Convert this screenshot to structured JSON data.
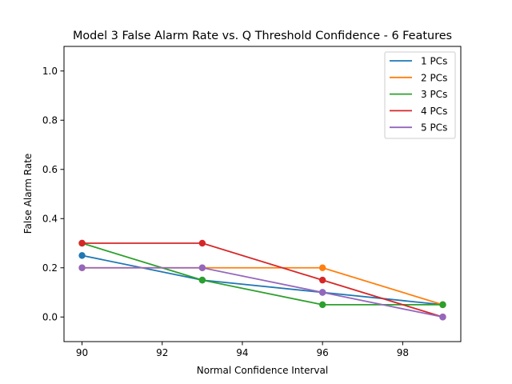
{
  "chart_data": {
    "type": "line",
    "title": "Model 3 False Alarm Rate vs. Q Threshold Confidence - 6 Features",
    "xlabel": "Normal Confidence Interval",
    "ylabel": "False Alarm Rate",
    "xlim": [
      89.55,
      99.45
    ],
    "ylim": [
      -0.1,
      1.1
    ],
    "x_ticks": [
      90,
      92,
      94,
      96,
      98
    ],
    "y_ticks": [
      0.0,
      0.2,
      0.4,
      0.6,
      0.8,
      1.0
    ],
    "x_tick_labels": [
      "90",
      "92",
      "94",
      "96",
      "98"
    ],
    "y_tick_labels": [
      "0.0",
      "0.2",
      "0.4",
      "0.6",
      "0.8",
      "1.0"
    ],
    "grid": false,
    "legend_position": "top-right",
    "x": [
      90,
      93,
      96,
      99
    ],
    "series": [
      {
        "name": "1 PCs",
        "color": "#1f77b4",
        "values": [
          0.25,
          0.15,
          0.1,
          0.05
        ]
      },
      {
        "name": "2 PCs",
        "color": "#ff7f0e",
        "values": [
          0.2,
          0.2,
          0.2,
          0.05
        ]
      },
      {
        "name": "3 PCs",
        "color": "#2ca02c",
        "values": [
          0.3,
          0.15,
          0.05,
          0.05
        ]
      },
      {
        "name": "4 PCs",
        "color": "#d62728",
        "values": [
          0.3,
          0.3,
          0.15,
          0.0
        ]
      },
      {
        "name": "5 PCs",
        "color": "#9467bd",
        "values": [
          0.2,
          0.2,
          0.1,
          0.0
        ]
      }
    ]
  }
}
